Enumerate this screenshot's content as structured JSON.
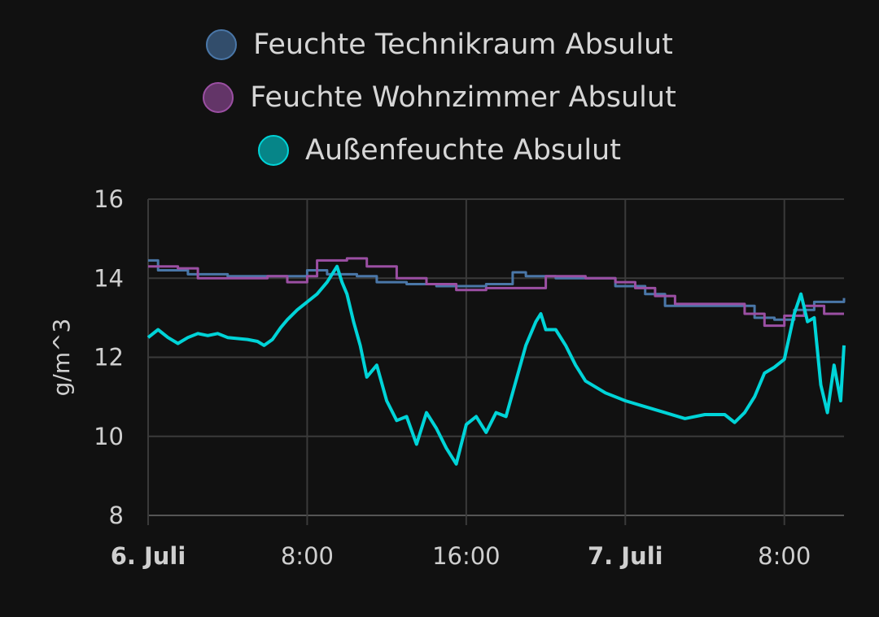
{
  "chart_data": {
    "type": "line",
    "title": "",
    "xlabel": "",
    "ylabel": "g/m^3",
    "ylim": [
      8,
      16
    ],
    "xlim": [
      "2024-07-06T00:00",
      "2024-07-07T11:00"
    ],
    "y_ticks": [
      "16",
      "14",
      "12",
      "10",
      "8"
    ],
    "x_ticks": [
      {
        "label": "6. Juli",
        "x": "2024-07-06T00:00",
        "bold": true
      },
      {
        "label": "8:00",
        "x": "2024-07-06T08:00",
        "bold": false
      },
      {
        "label": "16:00",
        "x": "2024-07-06T16:00",
        "bold": false
      },
      {
        "label": "7. Juli",
        "x": "2024-07-07T00:00",
        "bold": true
      },
      {
        "label": "8:00",
        "x": "2024-07-07T08:00",
        "bold": false
      }
    ],
    "grid": true,
    "legend_position": "top",
    "series": [
      {
        "name": "Feuchte Technikraum Absulut",
        "color": "#4a77a8",
        "step": true,
        "points": [
          [
            "2024-07-06T00:00",
            14.45
          ],
          [
            "2024-07-06T00:30",
            14.2
          ],
          [
            "2024-07-06T02:00",
            14.1
          ],
          [
            "2024-07-06T04:00",
            14.05
          ],
          [
            "2024-07-06T06:00",
            14.05
          ],
          [
            "2024-07-06T08:00",
            14.2
          ],
          [
            "2024-07-06T09:00",
            14.1
          ],
          [
            "2024-07-06T10:30",
            14.05
          ],
          [
            "2024-07-06T11:30",
            13.9
          ],
          [
            "2024-07-06T13:00",
            13.85
          ],
          [
            "2024-07-06T14:30",
            13.8
          ],
          [
            "2024-07-06T16:00",
            13.8
          ],
          [
            "2024-07-06T17:00",
            13.85
          ],
          [
            "2024-07-06T18:00",
            13.85
          ],
          [
            "2024-07-06T18:20",
            14.15
          ],
          [
            "2024-07-06T19:00",
            14.05
          ],
          [
            "2024-07-06T20:30",
            14.0
          ],
          [
            "2024-07-06T22:00",
            14.0
          ],
          [
            "2024-07-06T23:30",
            13.8
          ],
          [
            "2024-07-07T01:00",
            13.6
          ],
          [
            "2024-07-07T02:00",
            13.3
          ],
          [
            "2024-07-07T03:30",
            13.3
          ],
          [
            "2024-07-07T05:00",
            13.3
          ],
          [
            "2024-07-07T06:30",
            13.0
          ],
          [
            "2024-07-07T07:30",
            12.95
          ],
          [
            "2024-07-07T08:30",
            13.2
          ],
          [
            "2024-07-07T09:30",
            13.4
          ],
          [
            "2024-07-07T11:00",
            13.5
          ]
        ]
      },
      {
        "name": "Feuchte Wohnzimmer Absulut",
        "color": "#9b4fa3",
        "step": true,
        "points": [
          [
            "2024-07-06T00:00",
            14.3
          ],
          [
            "2024-07-06T01:30",
            14.25
          ],
          [
            "2024-07-06T02:30",
            14.0
          ],
          [
            "2024-07-06T04:00",
            14.0
          ],
          [
            "2024-07-06T06:00",
            14.05
          ],
          [
            "2024-07-06T07:00",
            13.9
          ],
          [
            "2024-07-06T08:00",
            14.05
          ],
          [
            "2024-07-06T08:30",
            14.45
          ],
          [
            "2024-07-06T10:00",
            14.5
          ],
          [
            "2024-07-06T11:00",
            14.3
          ],
          [
            "2024-07-06T12:30",
            14.0
          ],
          [
            "2024-07-06T14:00",
            13.85
          ],
          [
            "2024-07-06T15:30",
            13.7
          ],
          [
            "2024-07-06T17:00",
            13.75
          ],
          [
            "2024-07-06T19:00",
            13.75
          ],
          [
            "2024-07-06T20:00",
            14.05
          ],
          [
            "2024-07-06T22:00",
            14.0
          ],
          [
            "2024-07-06T23:30",
            13.9
          ],
          [
            "2024-07-07T00:30",
            13.75
          ],
          [
            "2024-07-07T01:30",
            13.55
          ],
          [
            "2024-07-07T02:30",
            13.35
          ],
          [
            "2024-07-07T05:00",
            13.35
          ],
          [
            "2024-07-07T06:00",
            13.1
          ],
          [
            "2024-07-07T07:00",
            12.8
          ],
          [
            "2024-07-07T08:00",
            13.05
          ],
          [
            "2024-07-07T09:00",
            13.3
          ],
          [
            "2024-07-07T10:00",
            13.1
          ],
          [
            "2024-07-07T11:00",
            13.1
          ]
        ]
      },
      {
        "name": "Außenfeuchte Absulut",
        "color": "#00d4d8",
        "step": false,
        "points": [
          [
            "2024-07-06T00:00",
            12.5
          ],
          [
            "2024-07-06T00:30",
            12.7
          ],
          [
            "2024-07-06T01:00",
            12.5
          ],
          [
            "2024-07-06T01:30",
            12.35
          ],
          [
            "2024-07-06T02:00",
            12.5
          ],
          [
            "2024-07-06T02:30",
            12.6
          ],
          [
            "2024-07-06T03:00",
            12.55
          ],
          [
            "2024-07-06T03:30",
            12.6
          ],
          [
            "2024-07-06T04:00",
            12.5
          ],
          [
            "2024-07-06T05:00",
            12.45
          ],
          [
            "2024-07-06T05:30",
            12.4
          ],
          [
            "2024-07-06T05:50",
            12.3
          ],
          [
            "2024-07-06T06:15",
            12.45
          ],
          [
            "2024-07-06T06:40",
            12.75
          ],
          [
            "2024-07-06T07:00",
            12.95
          ],
          [
            "2024-07-06T07:30",
            13.2
          ],
          [
            "2024-07-06T08:00",
            13.4
          ],
          [
            "2024-07-06T08:30",
            13.6
          ],
          [
            "2024-07-06T09:00",
            13.9
          ],
          [
            "2024-07-06T09:30",
            14.3
          ],
          [
            "2024-07-06T09:45",
            13.9
          ],
          [
            "2024-07-06T10:00",
            13.6
          ],
          [
            "2024-07-06T10:20",
            12.9
          ],
          [
            "2024-07-06T10:40",
            12.3
          ],
          [
            "2024-07-06T11:00",
            11.5
          ],
          [
            "2024-07-06T11:30",
            11.8
          ],
          [
            "2024-07-06T12:00",
            10.9
          ],
          [
            "2024-07-06T12:30",
            10.4
          ],
          [
            "2024-07-06T13:00",
            10.5
          ],
          [
            "2024-07-06T13:30",
            9.8
          ],
          [
            "2024-07-06T14:00",
            10.6
          ],
          [
            "2024-07-06T14:30",
            10.2
          ],
          [
            "2024-07-06T15:00",
            9.7
          ],
          [
            "2024-07-06T15:30",
            9.3
          ],
          [
            "2024-07-06T16:00",
            10.3
          ],
          [
            "2024-07-06T16:30",
            10.5
          ],
          [
            "2024-07-06T17:00",
            10.1
          ],
          [
            "2024-07-06T17:30",
            10.6
          ],
          [
            "2024-07-06T18:00",
            10.5
          ],
          [
            "2024-07-06T18:30",
            11.4
          ],
          [
            "2024-07-06T19:00",
            12.3
          ],
          [
            "2024-07-06T19:30",
            12.9
          ],
          [
            "2024-07-06T19:45",
            13.1
          ],
          [
            "2024-07-06T20:00",
            12.7
          ],
          [
            "2024-07-06T20:30",
            12.7
          ],
          [
            "2024-07-06T21:00",
            12.3
          ],
          [
            "2024-07-06T21:30",
            11.8
          ],
          [
            "2024-07-06T22:00",
            11.4
          ],
          [
            "2024-07-06T23:00",
            11.1
          ],
          [
            "2024-07-07T00:00",
            10.9
          ],
          [
            "2024-07-07T01:00",
            10.75
          ],
          [
            "2024-07-07T02:00",
            10.6
          ],
          [
            "2024-07-07T03:00",
            10.45
          ],
          [
            "2024-07-07T04:00",
            10.55
          ],
          [
            "2024-07-07T05:00",
            10.55
          ],
          [
            "2024-07-07T05:30",
            10.35
          ],
          [
            "2024-07-07T06:00",
            10.6
          ],
          [
            "2024-07-07T06:30",
            11.0
          ],
          [
            "2024-07-07T07:00",
            11.6
          ],
          [
            "2024-07-07T07:30",
            11.75
          ],
          [
            "2024-07-07T08:00",
            11.95
          ],
          [
            "2024-07-07T08:30",
            13.1
          ],
          [
            "2024-07-07T08:50",
            13.6
          ],
          [
            "2024-07-07T09:10",
            12.9
          ],
          [
            "2024-07-07T09:30",
            13.0
          ],
          [
            "2024-07-07T09:50",
            11.3
          ],
          [
            "2024-07-07T10:10",
            10.6
          ],
          [
            "2024-07-07T10:30",
            11.8
          ],
          [
            "2024-07-07T10:50",
            10.9
          ],
          [
            "2024-07-07T11:00",
            12.3
          ]
        ]
      }
    ]
  }
}
